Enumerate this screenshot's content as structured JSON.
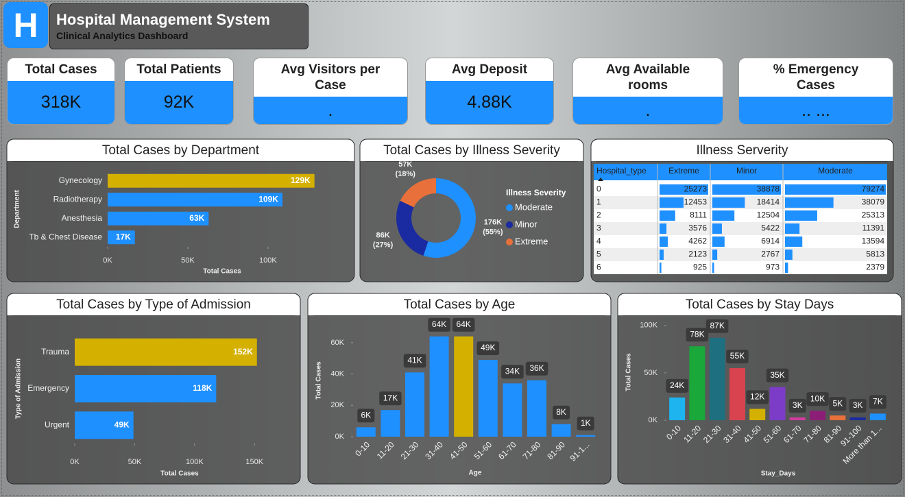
{
  "header": {
    "logo": "H",
    "title": "Hospital Management System",
    "subtitle": "Clinical Analytics Dashboard"
  },
  "kpis": [
    {
      "label": "Total Cases",
      "value": "318K"
    },
    {
      "label": "Total Patients",
      "value": "92K"
    },
    {
      "label": "Avg Visitors per Case",
      "value": "."
    },
    {
      "label": "Avg Deposit",
      "value": "4.88K"
    },
    {
      "label": "Avg Available rooms",
      "value": "."
    },
    {
      "label": "% Emergency Cases",
      "value": ".. ..."
    }
  ],
  "chart_data": [
    {
      "type": "hbar",
      "title": "Total Cases by Department",
      "categories": [
        "Gynecology",
        "Radiotherapy",
        "Anesthesia",
        "Tb & Chest Disease"
      ],
      "values": [
        129000,
        109000,
        63000,
        17000
      ],
      "value_labels": [
        "129K",
        "109K",
        "63K",
        "17K"
      ],
      "colors": [
        "#d4b000",
        "#1e90ff",
        "#1e90ff",
        "#1e90ff"
      ],
      "xlim": [
        0,
        130000
      ],
      "xticks": [
        {
          "value": 0,
          "label": "0K"
        },
        {
          "value": 50000,
          "label": "50K"
        },
        {
          "value": 100000,
          "label": "100K"
        }
      ],
      "xlabel": "Total Cases",
      "ylabel": "Department"
    },
    {
      "type": "donut",
      "title": "Total Cases by Illness Severity",
      "categories": [
        "Moderate",
        "Minor",
        "Extreme"
      ],
      "values": [
        176000,
        86000,
        57000
      ],
      "value_labels": [
        "176K",
        "86K",
        "57K"
      ],
      "percent_labels": [
        "(55%)",
        "(27%)",
        "(18%)"
      ],
      "colors": [
        "#1e90ff",
        "#1a2aa0",
        "#e8703a"
      ],
      "legend_title": "Illness Severity"
    },
    {
      "type": "hbar",
      "title": "Total Cases by Type of Admission",
      "categories": [
        "Trauma",
        "Emergency",
        "Urgent"
      ],
      "values": [
        152000,
        118000,
        49000
      ],
      "value_labels": [
        "152K",
        "118K",
        "49K"
      ],
      "colors": [
        "#d4b000",
        "#1e90ff",
        "#1e90ff"
      ],
      "xlim": [
        0,
        155000
      ],
      "xticks": [
        {
          "value": 0,
          "label": "0K"
        },
        {
          "value": 50000,
          "label": "50K"
        },
        {
          "value": 100000,
          "label": "100K"
        },
        {
          "value": 150000,
          "label": "150K"
        }
      ],
      "xlabel": "Total Cases",
      "ylabel": "Type of Admission"
    },
    {
      "type": "vbar",
      "title": "Total Cases by Age",
      "categories": [
        "0-10",
        "11-20",
        "21-30",
        "31-40",
        "41-50",
        "51-60",
        "61-70",
        "71-80",
        "81-90",
        "91-1..."
      ],
      "values": [
        6000,
        17000,
        41000,
        64000,
        64000,
        49000,
        34000,
        36000,
        8000,
        1000
      ],
      "value_labels": [
        "6K",
        "17K",
        "41K",
        "64K",
        "64K",
        "49K",
        "34K",
        "36K",
        "8K",
        "1K"
      ],
      "colors": [
        "#1e90ff",
        "#1e90ff",
        "#1e90ff",
        "#1e90ff",
        "#d4b000",
        "#1e90ff",
        "#1e90ff",
        "#1e90ff",
        "#1e90ff",
        "#1e90ff"
      ],
      "ylim": [
        0,
        70000
      ],
      "yticks": [
        {
          "value": 0,
          "label": "0K"
        },
        {
          "value": 20000,
          "label": "20K"
        },
        {
          "value": 40000,
          "label": "40K"
        },
        {
          "value": 60000,
          "label": "60K"
        }
      ],
      "xlabel": "Age",
      "ylabel": "Total Cases"
    },
    {
      "type": "vbar",
      "title": "Total Cases by Stay Days",
      "categories": [
        "0-10",
        "11-20",
        "21-30",
        "31-40",
        "41-50",
        "51-60",
        "61-70",
        "71-80",
        "81-90",
        "91-100",
        "More than 1..."
      ],
      "values": [
        24000,
        78000,
        87000,
        55000,
        12000,
        35000,
        3000,
        10000,
        5000,
        3000,
        7000
      ],
      "value_labels": [
        "24K",
        "78K",
        "87K",
        "55K",
        "12K",
        "35K",
        "3K",
        "10K",
        "5K",
        "3K",
        "7K"
      ],
      "colors": [
        "#1eb4f0",
        "#1aa83a",
        "#1e7080",
        "#d9434f",
        "#d4b000",
        "#7d3cc8",
        "#d23ca0",
        "#8c1e78",
        "#e8703a",
        "#1a2aa0",
        "#1e90ff"
      ],
      "ylim": [
        0,
        110000
      ],
      "yticks": [
        {
          "value": 0,
          "label": "0K"
        },
        {
          "value": 50000,
          "label": "50K"
        },
        {
          "value": 100000,
          "label": "100K"
        }
      ],
      "xlabel": "Stay_Days",
      "ylabel": "Total Cases"
    }
  ],
  "table": {
    "title": "Illness Serverity",
    "columns": [
      "Hospital_type",
      "Extreme",
      "Minor",
      "Moderate"
    ],
    "rows": [
      [
        0,
        25273,
        38878,
        79274
      ],
      [
        1,
        12453,
        18414,
        38079
      ],
      [
        2,
        8111,
        12504,
        25313
      ],
      [
        3,
        3576,
        5422,
        11391
      ],
      [
        4,
        4262,
        6914,
        13594
      ],
      [
        5,
        2123,
        2767,
        5813
      ],
      [
        6,
        925,
        973,
        2379
      ]
    ]
  }
}
